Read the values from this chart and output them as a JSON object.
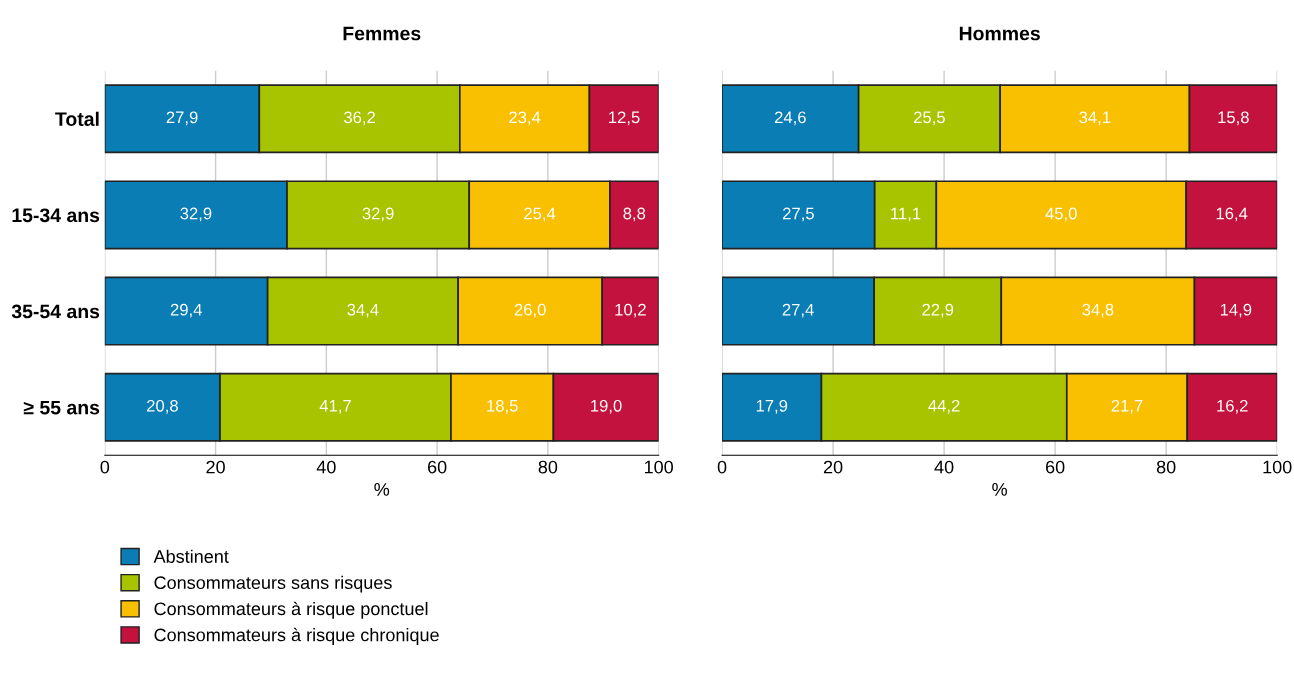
{
  "chart_data": [
    {
      "type": "bar",
      "title": "Femmes",
      "orientation": "horizontal",
      "stacked": true,
      "categories": [
        "Total",
        "15-34 ans",
        "35-54 ans",
        "≥ 55 ans"
      ],
      "xlabel": "%",
      "xlim": [
        0,
        100
      ],
      "xticks": [
        0,
        20,
        40,
        60,
        80,
        100
      ],
      "grid": "x",
      "legend": "bottom",
      "series": [
        {
          "name": "Abstinent",
          "color": "#0a7db4",
          "values": [
            27.9,
            32.9,
            29.4,
            20.8
          ],
          "value_labels": [
            "27,9",
            "32,9",
            "29,4",
            "20,8"
          ]
        },
        {
          "name": "Consommateurs sans risques",
          "color": "#a8c300",
          "values": [
            36.2,
            32.9,
            34.4,
            41.7
          ],
          "value_labels": [
            "36,2",
            "32,9",
            "34,4",
            "41,7"
          ]
        },
        {
          "name": "Consommateurs à risque ponctuel",
          "color": "#f8c000",
          "values": [
            23.4,
            25.4,
            26.0,
            18.5
          ],
          "value_labels": [
            "23,4",
            "25,4",
            "26,0",
            "18,5"
          ]
        },
        {
          "name": "Consommateurs à risque chronique",
          "color": "#c3123d",
          "values": [
            12.5,
            8.8,
            10.2,
            19.0
          ],
          "value_labels": [
            "12,5",
            "8,8",
            "10,2",
            "19,0"
          ]
        }
      ]
    },
    {
      "type": "bar",
      "title": "Hommes",
      "orientation": "horizontal",
      "stacked": true,
      "categories": [
        null,
        null,
        null,
        null
      ],
      "xlabel": "%",
      "xlim": [
        0,
        100
      ],
      "xticks": [
        0,
        20,
        40,
        60,
        80,
        100
      ],
      "grid": "x",
      "tick_labels": "x",
      "series": [
        {
          "color": "#0a7db4",
          "values": [
            24.6,
            27.5,
            27.4,
            17.9
          ],
          "value_labels": [
            "24,6",
            "27,5",
            "27,4",
            "17,9"
          ]
        },
        {
          "color": "#a8c300",
          "values": [
            25.5,
            11.1,
            22.9,
            44.2
          ],
          "value_labels": [
            "25,5",
            "11,1",
            "22,9",
            "44,2"
          ]
        },
        {
          "color": "#f8c000",
          "values": [
            34.1,
            45.0,
            34.8,
            21.7
          ],
          "value_labels": [
            "34,1",
            "45,0",
            "34,8",
            "21,7"
          ]
        },
        {
          "color": "#c3123d",
          "values": [
            15.8,
            16.4,
            14.9,
            16.2
          ],
          "value_labels": [
            "15,8",
            "16,4",
            "14,9",
            "16,2"
          ]
        }
      ]
    }
  ]
}
